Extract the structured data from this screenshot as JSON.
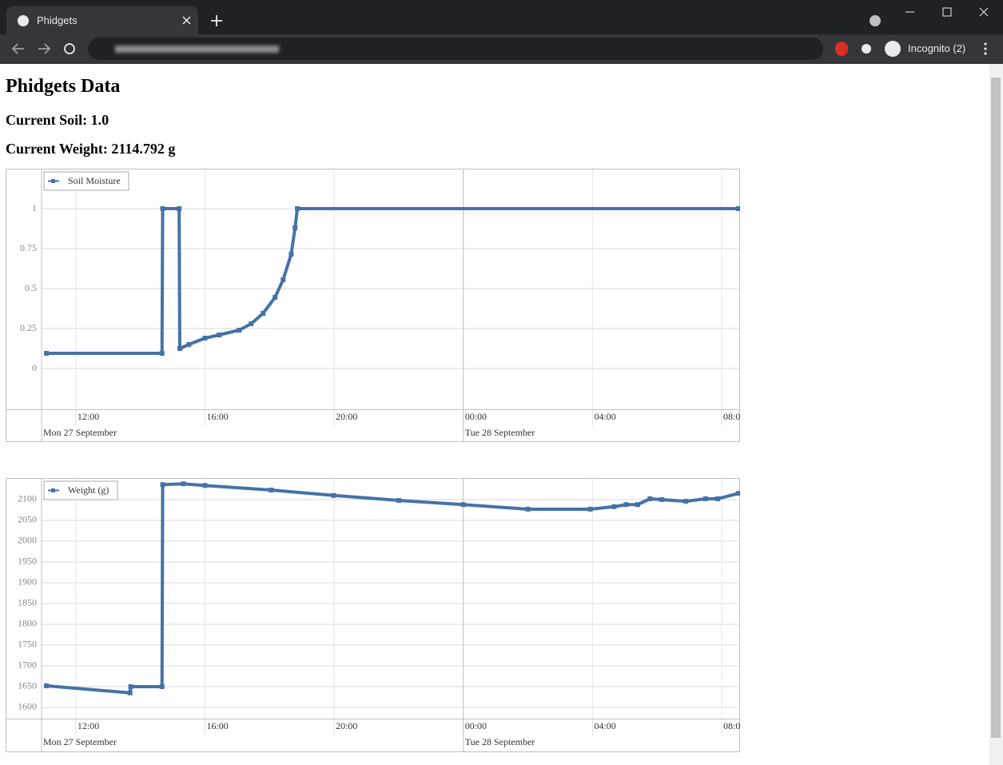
{
  "browser": {
    "tab_title": "Phidgets",
    "profile": "Incognito (2)"
  },
  "page": {
    "title": "Phidgets Data",
    "current_soil": "Current Soil: 1.0",
    "current_weight": "Current Weight: 2114.792 g"
  },
  "chart_data": [
    {
      "type": "line",
      "grid": true,
      "legend": "upper-left",
      "xlim": [
        10.94,
        32.52
      ],
      "xticks": [
        {
          "value": 12,
          "label": "12:00"
        },
        {
          "value": 16,
          "label": "16:00"
        },
        {
          "value": 20,
          "label": "20:00"
        },
        {
          "value": 24,
          "label": "00:00"
        },
        {
          "value": 28,
          "label": "04:00"
        },
        {
          "value": 32,
          "label": "08:00"
        }
      ],
      "x_date_ticks": [
        {
          "value": 10.94,
          "label": "Mon 27 September"
        },
        {
          "value": 24,
          "label": "Tue 28 September"
        }
      ],
      "ylim": [
        -0.255,
        1.245
      ],
      "yticks": [
        0,
        0.25,
        0.5,
        0.75,
        1
      ],
      "series": [
        {
          "name": "Soil Moisture",
          "color": "#4572a7",
          "x": [
            11.09,
            14.67,
            14.69,
            15.2,
            15.22,
            15.5,
            16.0,
            16.44,
            17.06,
            17.43,
            17.8,
            18.17,
            18.42,
            18.67,
            18.79,
            18.86,
            32.52
          ],
          "values": [
            0.095,
            0.095,
            1,
            1,
            0.125,
            0.15,
            0.19,
            0.21,
            0.24,
            0.28,
            0.345,
            0.445,
            0.555,
            0.715,
            0.88,
            1,
            1
          ]
        }
      ]
    },
    {
      "type": "line",
      "grid": true,
      "legend": "upper-left",
      "xlim": [
        10.94,
        32.52
      ],
      "xticks": [
        {
          "value": 12,
          "label": "12:00"
        },
        {
          "value": 16,
          "label": "16:00"
        },
        {
          "value": 20,
          "label": "20:00"
        },
        {
          "value": 24,
          "label": "00:00"
        },
        {
          "value": 28,
          "label": "04:00"
        },
        {
          "value": 32,
          "label": "08:00"
        }
      ],
      "x_date_ticks": [
        {
          "value": 10.94,
          "label": "Mon 27 September"
        },
        {
          "value": 24,
          "label": "Tue 28 September"
        }
      ],
      "ylim": [
        1573,
        2150
      ],
      "yticks": [
        1600,
        1650,
        1700,
        1750,
        1800,
        1850,
        1900,
        1950,
        2000,
        2050,
        2100
      ],
      "series": [
        {
          "name": "Weight (g)",
          "color": "#4572a7",
          "x": [
            11.09,
            13.68,
            13.7,
            14.67,
            14.69,
            15.33,
            16.0,
            18.05,
            19.98,
            22.0,
            24.0,
            26.0,
            27.93,
            28.67,
            29.04,
            29.4,
            29.78,
            30.15,
            30.89,
            31.5,
            31.88,
            32.52
          ],
          "values": [
            1652,
            1635,
            1650,
            1650,
            2136,
            2138,
            2134,
            2123,
            2110,
            2098,
            2088,
            2077,
            2077,
            2083,
            2088,
            2088,
            2102,
            2100,
            2096,
            2102,
            2102,
            2115
          ]
        }
      ]
    }
  ]
}
